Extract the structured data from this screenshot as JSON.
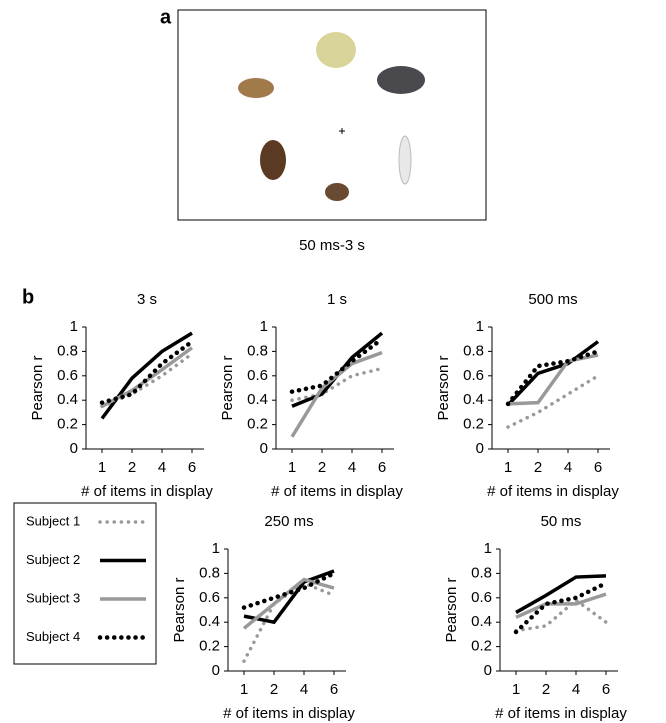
{
  "panel_a": {
    "label": "a",
    "caption": "50 ms-3 s"
  },
  "panel_b": {
    "label": "b"
  },
  "chart_data": [
    {
      "type": "line",
      "title": "3 s",
      "x_label": "# of items in display",
      "y_label": "Pearson r",
      "categories": [
        "1",
        "2",
        "4",
        "6"
      ],
      "ylim": [
        0,
        1
      ],
      "yticks": [
        0,
        0.2,
        0.4,
        0.6,
        0.8,
        1
      ],
      "series": [
        {
          "name": "Subject 1",
          "color": "#999999",
          "dash": "dotted",
          "values": [
            0.35,
            0.45,
            0.6,
            0.78
          ]
        },
        {
          "name": "Subject 2",
          "color": "#000000",
          "dash": "solid",
          "values": [
            0.25,
            0.58,
            0.8,
            0.95
          ]
        },
        {
          "name": "Subject 3",
          "color": "#999999",
          "dash": "solid",
          "values": [
            0.35,
            0.48,
            0.65,
            0.83
          ]
        },
        {
          "name": "Subject 4",
          "color": "#000000",
          "dash": "dotted",
          "values": [
            0.38,
            0.45,
            0.7,
            0.88
          ]
        }
      ]
    },
    {
      "type": "line",
      "title": "1 s",
      "x_label": "# of items in display",
      "y_label": "Pearson r",
      "categories": [
        "1",
        "2",
        "4",
        "6"
      ],
      "ylim": [
        0,
        1
      ],
      "yticks": [
        0,
        0.2,
        0.4,
        0.6,
        0.8,
        1
      ],
      "series": [
        {
          "color": "#999999",
          "dash": "dotted",
          "values": [
            0.4,
            0.45,
            0.6,
            0.66
          ]
        },
        {
          "color": "#000000",
          "dash": "solid",
          "values": [
            0.35,
            0.45,
            0.75,
            0.95
          ]
        },
        {
          "color": "#999999",
          "dash": "solid",
          "values": [
            0.1,
            0.5,
            0.7,
            0.79
          ]
        },
        {
          "color": "#000000",
          "dash": "dotted",
          "values": [
            0.47,
            0.52,
            0.72,
            0.9
          ]
        }
      ]
    },
    {
      "type": "line",
      "title": "500 ms",
      "x_label": "# of items in display",
      "y_label": "Pearson r",
      "categories": [
        "1",
        "2",
        "4",
        "6"
      ],
      "ylim": [
        0,
        1
      ],
      "yticks": [
        0,
        0.2,
        0.4,
        0.6,
        0.8,
        1
      ],
      "series": [
        {
          "color": "#999999",
          "dash": "dotted",
          "values": [
            0.18,
            0.3,
            0.45,
            0.6
          ]
        },
        {
          "color": "#000000",
          "dash": "solid",
          "values": [
            0.36,
            0.62,
            0.7,
            0.88
          ]
        },
        {
          "color": "#999999",
          "dash": "solid",
          "values": [
            0.37,
            0.38,
            0.72,
            0.77
          ]
        },
        {
          "color": "#000000",
          "dash": "dotted",
          "values": [
            0.37,
            0.68,
            0.72,
            0.8
          ]
        }
      ]
    },
    {
      "type": "line",
      "title": "250 ms",
      "x_label": "# of items in display",
      "y_label": "Pearson r",
      "categories": [
        "1",
        "2",
        "4",
        "6"
      ],
      "ylim": [
        0,
        1
      ],
      "yticks": [
        0,
        0.2,
        0.4,
        0.6,
        0.8,
        1
      ],
      "series": [
        {
          "color": "#999999",
          "dash": "dotted",
          "values": [
            0.08,
            0.55,
            0.72,
            0.62
          ]
        },
        {
          "color": "#000000",
          "dash": "solid",
          "values": [
            0.45,
            0.4,
            0.73,
            0.82
          ]
        },
        {
          "color": "#999999",
          "dash": "solid",
          "values": [
            0.35,
            0.55,
            0.75,
            0.68
          ]
        },
        {
          "color": "#000000",
          "dash": "dotted",
          "values": [
            0.52,
            0.6,
            0.68,
            0.8
          ]
        }
      ]
    },
    {
      "type": "line",
      "title": "50 ms",
      "x_label": "# of items in display",
      "y_label": "Pearson r",
      "categories": [
        "1",
        "2",
        "4",
        "6"
      ],
      "ylim": [
        0,
        1
      ],
      "yticks": [
        0,
        0.2,
        0.4,
        0.6,
        0.8,
        1
      ],
      "series": [
        {
          "color": "#999999",
          "dash": "dotted",
          "values": [
            0.33,
            0.37,
            0.58,
            0.4
          ]
        },
        {
          "color": "#000000",
          "dash": "solid",
          "values": [
            0.48,
            0.62,
            0.77,
            0.78
          ]
        },
        {
          "color": "#999999",
          "dash": "solid",
          "values": [
            0.44,
            0.55,
            0.55,
            0.63
          ]
        },
        {
          "color": "#000000",
          "dash": "dotted",
          "values": [
            0.32,
            0.55,
            0.6,
            0.72
          ]
        }
      ]
    }
  ]
}
